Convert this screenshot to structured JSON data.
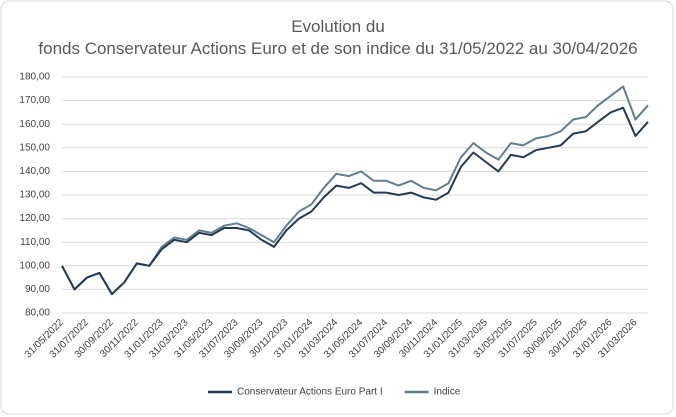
{
  "chart_data": {
    "type": "line",
    "title": "Evolution du fonds Conservateur Actions Euro et de son indice du 31/05/2022 au 30/04/2026",
    "categories": [
      "31/05/2022",
      null,
      "31/07/2022",
      null,
      "30/09/2022",
      null,
      "30/11/2022",
      null,
      "31/01/2023",
      null,
      "31/03/2023",
      null,
      "31/05/2023",
      null,
      "31/07/2023",
      null,
      "30/09/2023",
      null,
      "30/11/2023",
      null,
      "31/01/2024",
      null,
      "31/03/2024",
      null,
      "31/05/2024",
      null,
      "31/07/2024",
      null,
      "30/09/2024",
      null,
      "30/11/2024",
      null,
      "31/01/2025",
      null,
      "31/03/2025",
      null,
      "31/05/2025",
      null,
      "31/07/2025",
      null,
      "30/09/2025",
      null,
      "30/11/2025",
      null,
      "31/01/2026",
      null,
      "31/03/2026",
      null
    ],
    "series": [
      {
        "name": "Conservateur Actions Euro Part I",
        "color": "#243a55",
        "values": [
          100,
          90,
          95,
          97,
          88,
          93,
          101,
          100,
          107,
          111,
          110,
          114,
          113,
          116,
          116,
          115,
          111,
          108,
          115,
          120,
          123,
          129,
          134,
          133,
          135,
          131,
          131,
          130,
          131,
          129,
          128,
          131,
          142,
          148,
          144,
          140,
          147,
          146,
          149,
          150,
          151,
          156,
          157,
          161,
          165,
          167,
          155,
          161
        ]
      },
      {
        "name": "Indice",
        "color": "#5f7f8f",
        "values": [
          100,
          90,
          95,
          97,
          88,
          93,
          101,
          100,
          108,
          112,
          111,
          115,
          114,
          117,
          118,
          116,
          113,
          110,
          117,
          123,
          126,
          133,
          139,
          138,
          140,
          136,
          136,
          134,
          136,
          133,
          132,
          135,
          146,
          152,
          148,
          145,
          152,
          151,
          154,
          155,
          157,
          162,
          163,
          168,
          172,
          176,
          162,
          168
        ]
      }
    ],
    "ylim": [
      80,
      180
    ],
    "yticks": [
      {
        "value": 80,
        "label": "80,00"
      },
      {
        "value": 90,
        "label": "90,00"
      },
      {
        "value": 100,
        "label": "100,00"
      },
      {
        "value": 110,
        "label": "110,00"
      },
      {
        "value": 120,
        "label": "120,00"
      },
      {
        "value": 130,
        "label": "130,00"
      },
      {
        "value": 140,
        "label": "140,00"
      },
      {
        "value": 150,
        "label": "150,00"
      },
      {
        "value": 160,
        "label": "160,00"
      },
      {
        "value": 170,
        "label": "170,00"
      },
      {
        "value": 180,
        "label": "180,00"
      }
    ],
    "grid": true,
    "legend": "bottom"
  }
}
